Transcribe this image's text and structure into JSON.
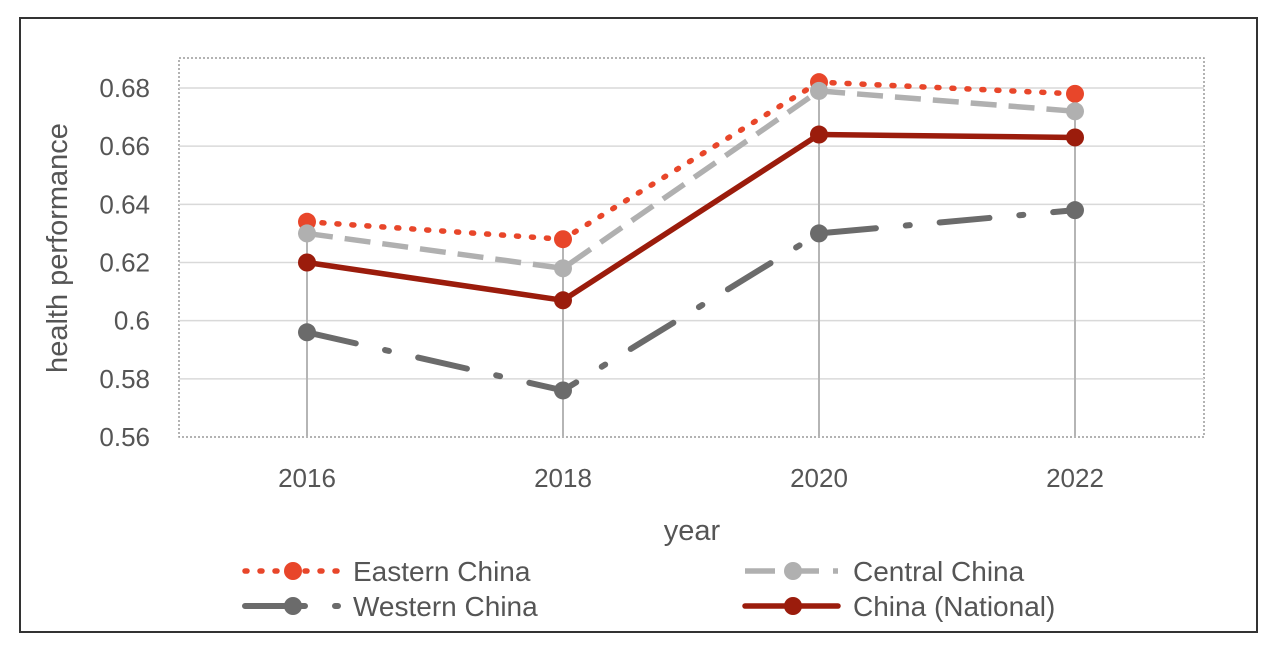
{
  "chart_data": {
    "type": "line",
    "x": [
      "2016",
      "2018",
      "2020",
      "2022"
    ],
    "xlabel": "year",
    "ylabel": "health performance",
    "ylim": [
      0.56,
      0.69
    ],
    "yticks": [
      "0.56",
      "0.58",
      "0.6",
      "0.62",
      "0.64",
      "0.66",
      "0.68"
    ],
    "grid": true,
    "legend_position": "bottom",
    "series": [
      {
        "name": "Eastern China",
        "values": [
          0.634,
          0.628,
          0.682,
          0.678
        ],
        "color": "#e8462a",
        "style": "dotted"
      },
      {
        "name": "Central China",
        "values": [
          0.63,
          0.618,
          0.679,
          0.672
        ],
        "color": "#b0b0b0",
        "style": "dashed"
      },
      {
        "name": "Western China",
        "values": [
          0.596,
          0.576,
          0.63,
          0.638
        ],
        "color": "#6b6b6b",
        "style": "dash-dot"
      },
      {
        "name": "China (National)",
        "values": [
          0.62,
          0.607,
          0.664,
          0.663
        ],
        "color": "#9b1c0c",
        "style": "solid"
      }
    ]
  }
}
